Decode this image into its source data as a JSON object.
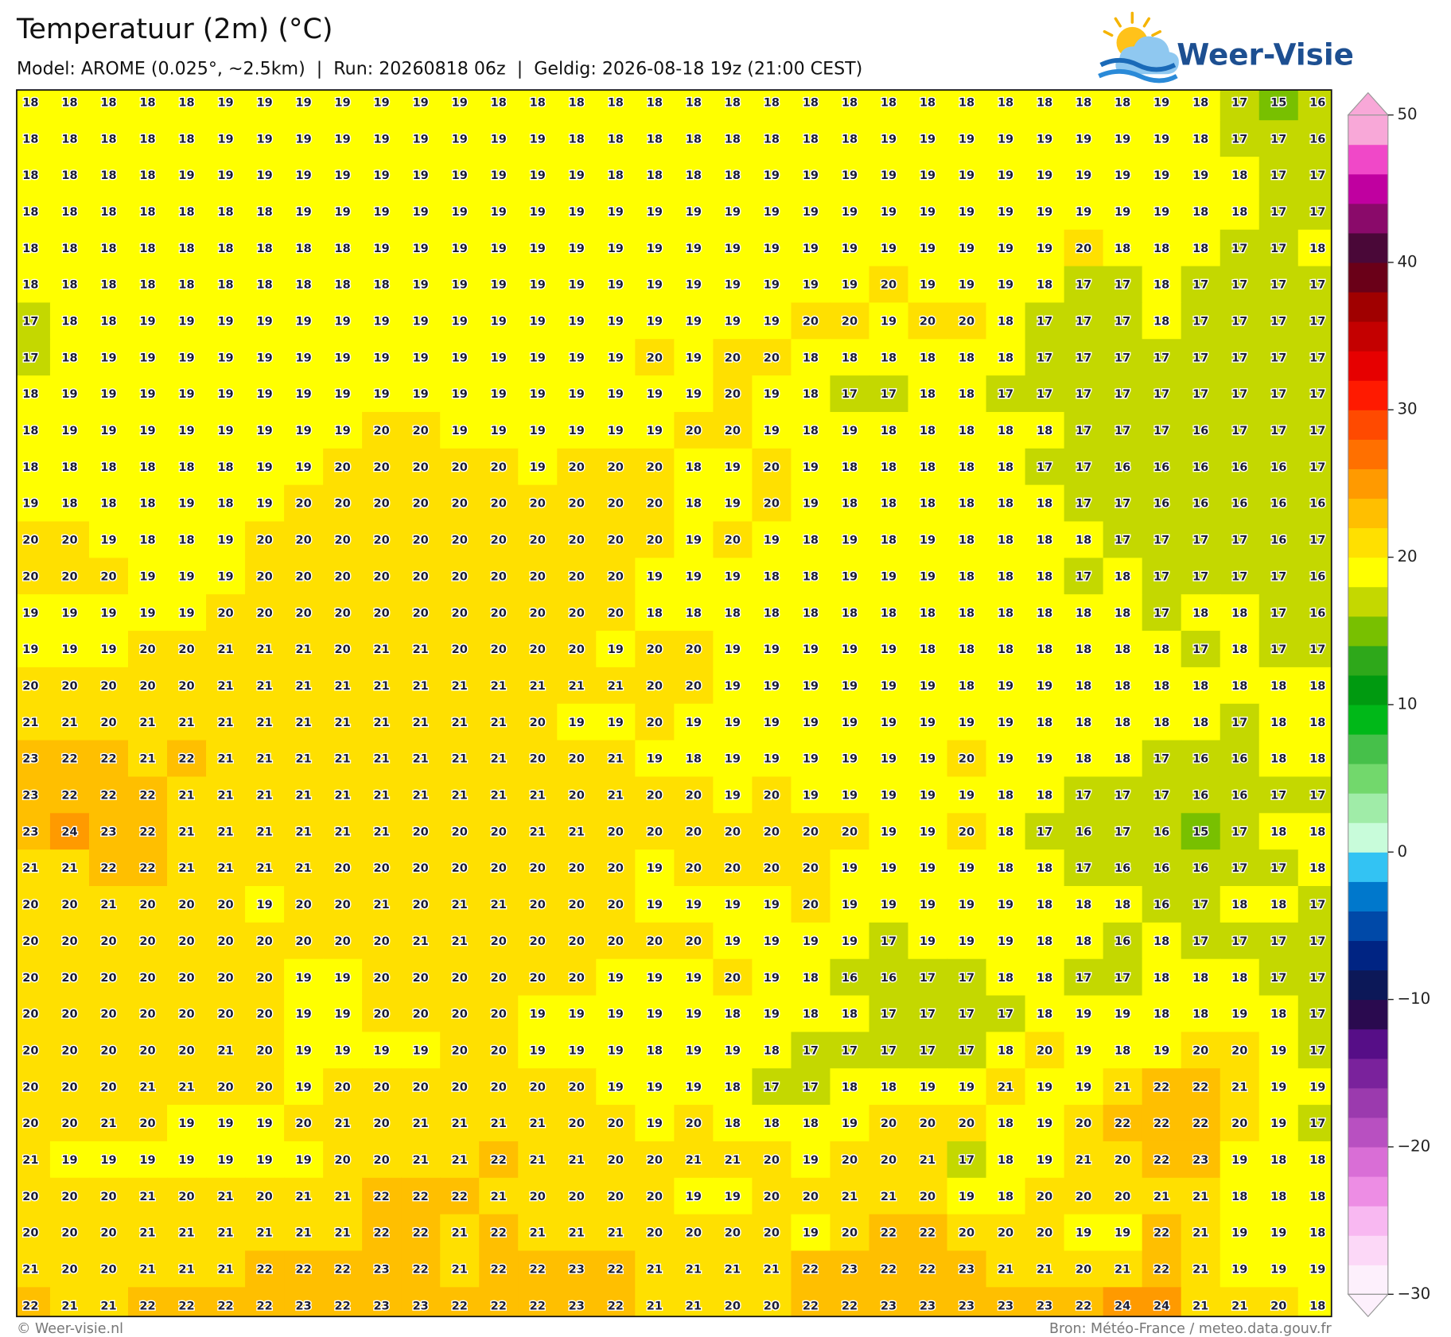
{
  "header": {
    "title": "Temperatuur (2m) (°C)",
    "subtitle": "Model: AROME (0.025°, ~2.5km)  |  Run: 20260818 06z  |  Geldig: 2026-08-18 19z (21:00 CEST)"
  },
  "logo": {
    "text": "Weer-Visie"
  },
  "map": {
    "type": "grid",
    "values": [
      [
        18,
        18,
        18,
        18,
        18,
        19,
        19,
        19,
        19,
        19,
        19,
        19,
        18,
        18,
        18,
        18,
        18,
        18,
        18,
        18,
        18,
        18,
        18,
        18,
        18,
        18,
        18,
        18,
        18,
        19,
        18,
        17,
        15,
        16
      ],
      [
        18,
        18,
        18,
        18,
        18,
        19,
        19,
        19,
        19,
        19,
        19,
        19,
        19,
        19,
        18,
        18,
        18,
        18,
        18,
        18,
        18,
        18,
        19,
        19,
        19,
        19,
        19,
        19,
        19,
        19,
        18,
        17,
        17,
        16
      ],
      [
        18,
        18,
        18,
        18,
        19,
        19,
        19,
        19,
        19,
        19,
        19,
        19,
        19,
        19,
        19,
        18,
        18,
        18,
        18,
        19,
        19,
        19,
        19,
        19,
        19,
        19,
        19,
        19,
        19,
        19,
        19,
        18,
        17,
        17
      ],
      [
        18,
        18,
        18,
        18,
        18,
        18,
        18,
        19,
        19,
        19,
        19,
        19,
        19,
        19,
        19,
        19,
        19,
        19,
        19,
        19,
        19,
        19,
        19,
        19,
        19,
        19,
        19,
        19,
        19,
        19,
        18,
        18,
        17,
        17
      ],
      [
        18,
        18,
        18,
        18,
        18,
        18,
        18,
        18,
        18,
        19,
        19,
        19,
        19,
        19,
        19,
        19,
        19,
        19,
        19,
        19,
        19,
        19,
        19,
        19,
        19,
        19,
        19,
        20,
        18,
        18,
        18,
        17,
        17,
        18
      ],
      [
        18,
        18,
        18,
        18,
        18,
        18,
        18,
        18,
        18,
        18,
        19,
        19,
        19,
        19,
        19,
        19,
        19,
        19,
        19,
        19,
        19,
        19,
        20,
        19,
        19,
        19,
        18,
        17,
        17,
        18,
        17,
        17,
        17,
        17
      ],
      [
        17,
        18,
        18,
        19,
        19,
        19,
        19,
        19,
        19,
        19,
        19,
        19,
        19,
        19,
        19,
        19,
        19,
        19,
        19,
        19,
        20,
        20,
        19,
        20,
        20,
        18,
        17,
        17,
        17,
        18,
        17,
        17,
        17,
        17
      ],
      [
        17,
        18,
        19,
        19,
        19,
        19,
        19,
        19,
        19,
        19,
        19,
        19,
        19,
        19,
        19,
        19,
        20,
        19,
        20,
        20,
        18,
        18,
        18,
        18,
        18,
        18,
        17,
        17,
        17,
        17,
        17,
        17,
        17,
        17
      ],
      [
        18,
        19,
        19,
        19,
        19,
        19,
        19,
        19,
        19,
        19,
        19,
        19,
        19,
        19,
        19,
        19,
        19,
        19,
        20,
        19,
        18,
        17,
        17,
        18,
        18,
        17,
        17,
        17,
        17,
        17,
        17,
        17,
        17,
        17
      ],
      [
        18,
        19,
        19,
        19,
        19,
        19,
        19,
        19,
        19,
        20,
        20,
        19,
        19,
        19,
        19,
        19,
        19,
        20,
        20,
        19,
        18,
        19,
        18,
        18,
        18,
        18,
        18,
        17,
        17,
        17,
        16,
        17,
        17,
        17
      ],
      [
        18,
        18,
        18,
        18,
        18,
        18,
        19,
        19,
        20,
        20,
        20,
        20,
        20,
        19,
        20,
        20,
        20,
        18,
        19,
        20,
        19,
        18,
        18,
        18,
        18,
        18,
        17,
        17,
        16,
        16,
        16,
        16,
        16,
        17
      ],
      [
        19,
        18,
        18,
        18,
        19,
        18,
        19,
        20,
        20,
        20,
        20,
        20,
        20,
        20,
        20,
        20,
        20,
        18,
        19,
        20,
        19,
        18,
        18,
        18,
        18,
        18,
        18,
        17,
        17,
        16,
        16,
        16,
        16,
        16
      ],
      [
        20,
        20,
        19,
        18,
        18,
        19,
        20,
        20,
        20,
        20,
        20,
        20,
        20,
        20,
        20,
        20,
        20,
        19,
        20,
        19,
        18,
        19,
        18,
        19,
        18,
        18,
        18,
        18,
        17,
        17,
        17,
        17,
        16,
        17
      ],
      [
        20,
        20,
        20,
        19,
        19,
        19,
        20,
        20,
        20,
        20,
        20,
        20,
        20,
        20,
        20,
        20,
        19,
        19,
        19,
        18,
        18,
        19,
        19,
        19,
        18,
        18,
        18,
        17,
        18,
        17,
        17,
        17,
        17,
        16
      ],
      [
        19,
        19,
        19,
        19,
        19,
        20,
        20,
        20,
        20,
        20,
        20,
        20,
        20,
        20,
        20,
        20,
        18,
        18,
        18,
        18,
        18,
        18,
        18,
        18,
        18,
        18,
        18,
        18,
        18,
        17,
        18,
        18,
        17,
        16
      ],
      [
        19,
        19,
        19,
        20,
        20,
        21,
        21,
        21,
        20,
        21,
        21,
        20,
        20,
        20,
        20,
        19,
        20,
        20,
        19,
        19,
        19,
        19,
        19,
        18,
        18,
        18,
        18,
        18,
        18,
        18,
        17,
        18,
        17,
        17
      ],
      [
        20,
        20,
        20,
        20,
        20,
        21,
        21,
        21,
        21,
        21,
        21,
        21,
        21,
        21,
        21,
        21,
        20,
        20,
        19,
        19,
        19,
        19,
        19,
        19,
        18,
        19,
        19,
        18,
        18,
        18,
        18,
        18,
        18,
        18
      ],
      [
        21,
        21,
        20,
        21,
        21,
        21,
        21,
        21,
        21,
        21,
        21,
        21,
        21,
        20,
        19,
        19,
        20,
        19,
        19,
        19,
        19,
        19,
        19,
        19,
        19,
        19,
        18,
        18,
        18,
        18,
        18,
        17,
        18,
        18
      ],
      [
        23,
        22,
        22,
        21,
        22,
        21,
        21,
        21,
        21,
        21,
        21,
        21,
        21,
        20,
        20,
        21,
        19,
        18,
        19,
        19,
        19,
        19,
        19,
        19,
        20,
        19,
        19,
        18,
        18,
        17,
        16,
        16,
        18,
        18
      ],
      [
        23,
        22,
        22,
        22,
        21,
        21,
        21,
        21,
        21,
        21,
        21,
        21,
        21,
        21,
        20,
        21,
        20,
        20,
        19,
        20,
        19,
        19,
        19,
        19,
        19,
        18,
        18,
        17,
        17,
        17,
        16,
        16,
        17,
        17
      ],
      [
        23,
        24,
        23,
        22,
        21,
        21,
        21,
        21,
        21,
        21,
        20,
        20,
        20,
        21,
        21,
        20,
        20,
        20,
        20,
        20,
        20,
        20,
        19,
        19,
        20,
        18,
        17,
        16,
        17,
        16,
        15,
        17,
        18,
        18
      ],
      [
        21,
        21,
        22,
        22,
        21,
        21,
        21,
        21,
        20,
        20,
        20,
        20,
        20,
        20,
        20,
        20,
        19,
        20,
        20,
        20,
        20,
        19,
        19,
        19,
        19,
        18,
        18,
        17,
        16,
        16,
        16,
        17,
        17,
        18
      ],
      [
        20,
        20,
        21,
        20,
        20,
        20,
        19,
        20,
        20,
        21,
        20,
        21,
        21,
        20,
        20,
        20,
        19,
        19,
        19,
        19,
        20,
        19,
        19,
        19,
        19,
        19,
        18,
        18,
        18,
        16,
        17,
        18,
        18,
        17
      ],
      [
        20,
        20,
        20,
        20,
        20,
        20,
        20,
        20,
        20,
        20,
        21,
        21,
        20,
        20,
        20,
        20,
        20,
        20,
        19,
        19,
        19,
        19,
        17,
        19,
        19,
        19,
        18,
        18,
        16,
        18,
        17,
        17,
        17,
        17
      ],
      [
        20,
        20,
        20,
        20,
        20,
        20,
        20,
        19,
        19,
        20,
        20,
        20,
        20,
        20,
        20,
        19,
        19,
        19,
        20,
        19,
        18,
        16,
        16,
        17,
        17,
        18,
        18,
        17,
        17,
        18,
        18,
        18,
        17,
        17
      ],
      [
        20,
        20,
        20,
        20,
        20,
        20,
        20,
        19,
        19,
        20,
        20,
        20,
        20,
        19,
        19,
        19,
        19,
        19,
        18,
        19,
        18,
        18,
        17,
        17,
        17,
        17,
        18,
        19,
        19,
        18,
        18,
        19,
        18,
        17
      ],
      [
        20,
        20,
        20,
        20,
        20,
        21,
        20,
        19,
        19,
        19,
        19,
        20,
        20,
        19,
        19,
        19,
        18,
        19,
        19,
        18,
        17,
        17,
        17,
        17,
        17,
        18,
        20,
        19,
        18,
        19,
        20,
        20,
        19,
        17
      ],
      [
        20,
        20,
        20,
        21,
        21,
        20,
        20,
        19,
        20,
        20,
        20,
        20,
        20,
        20,
        20,
        19,
        19,
        19,
        18,
        17,
        17,
        18,
        18,
        19,
        19,
        21,
        19,
        19,
        21,
        22,
        22,
        21,
        19,
        19
      ],
      [
        20,
        20,
        21,
        20,
        19,
        19,
        19,
        20,
        21,
        20,
        21,
        21,
        21,
        21,
        20,
        20,
        19,
        20,
        18,
        18,
        18,
        19,
        20,
        20,
        20,
        18,
        19,
        20,
        22,
        22,
        22,
        20,
        19,
        17
      ],
      [
        21,
        19,
        19,
        19,
        19,
        19,
        19,
        19,
        20,
        20,
        21,
        21,
        22,
        21,
        21,
        20,
        20,
        21,
        21,
        20,
        19,
        20,
        20,
        21,
        17,
        18,
        19,
        21,
        20,
        22,
        23,
        19,
        18,
        18
      ],
      [
        20,
        20,
        20,
        21,
        20,
        21,
        20,
        21,
        21,
        22,
        22,
        22,
        21,
        20,
        20,
        20,
        20,
        19,
        19,
        20,
        20,
        21,
        21,
        20,
        19,
        18,
        20,
        20,
        20,
        21,
        21,
        18,
        18,
        18
      ],
      [
        20,
        20,
        20,
        21,
        21,
        21,
        21,
        21,
        21,
        22,
        22,
        21,
        22,
        21,
        21,
        21,
        20,
        20,
        20,
        20,
        19,
        20,
        22,
        22,
        20,
        20,
        20,
        19,
        19,
        22,
        21,
        19,
        19,
        18
      ],
      [
        21,
        20,
        20,
        21,
        21,
        21,
        22,
        22,
        22,
        23,
        22,
        21,
        22,
        22,
        23,
        22,
        21,
        21,
        21,
        21,
        22,
        23,
        22,
        22,
        23,
        21,
        21,
        20,
        21,
        22,
        21,
        19,
        19,
        19
      ],
      [
        22,
        21,
        21,
        22,
        22,
        22,
        22,
        23,
        22,
        23,
        23,
        22,
        22,
        22,
        23,
        22,
        21,
        21,
        20,
        20,
        22,
        22,
        23,
        23,
        23,
        23,
        23,
        22,
        24,
        24,
        21,
        21,
        20,
        18
      ]
    ]
  },
  "colorbar": {
    "clim": [
      -30,
      50
    ],
    "ticks": [
      50,
      40,
      30,
      20,
      10,
      0,
      {
        "value": -10,
        "label": "−10"
      },
      {
        "value": -20,
        "label": "−20"
      },
      {
        "value": -30,
        "label": "−30"
      }
    ],
    "colors": [
      "#fdf0fc",
      "#fcd8f7",
      "#f8b8f1",
      "#ed8de4",
      "#d96ed6",
      "#b850c1",
      "#9b3aae",
      "#7a229c",
      "#560e87",
      "#2a0a4f",
      "#0c1858",
      "#002483",
      "#0049a8",
      "#0078cc",
      "#33c3f3",
      "#c8fcda",
      "#a0eca8",
      "#72d86c",
      "#46c04a",
      "#00b818",
      "#009a10",
      "#2ea81a",
      "#78c000",
      "#c4d800",
      "#ffff00",
      "#ffe000",
      "#ffbf00",
      "#ff9a00",
      "#ff7000",
      "#ff4a00",
      "#ff1a00",
      "#e60000",
      "#c40000",
      "#a00000",
      "#6a0018",
      "#4a0838",
      "#8a0a6a",
      "#c000a0",
      "#f048c8",
      "#f8a8d8"
    ]
  },
  "footer": {
    "left": "© Weer-visie.nl",
    "right": "Bron: Météo-France / meteo.data.gouv.fr"
  }
}
